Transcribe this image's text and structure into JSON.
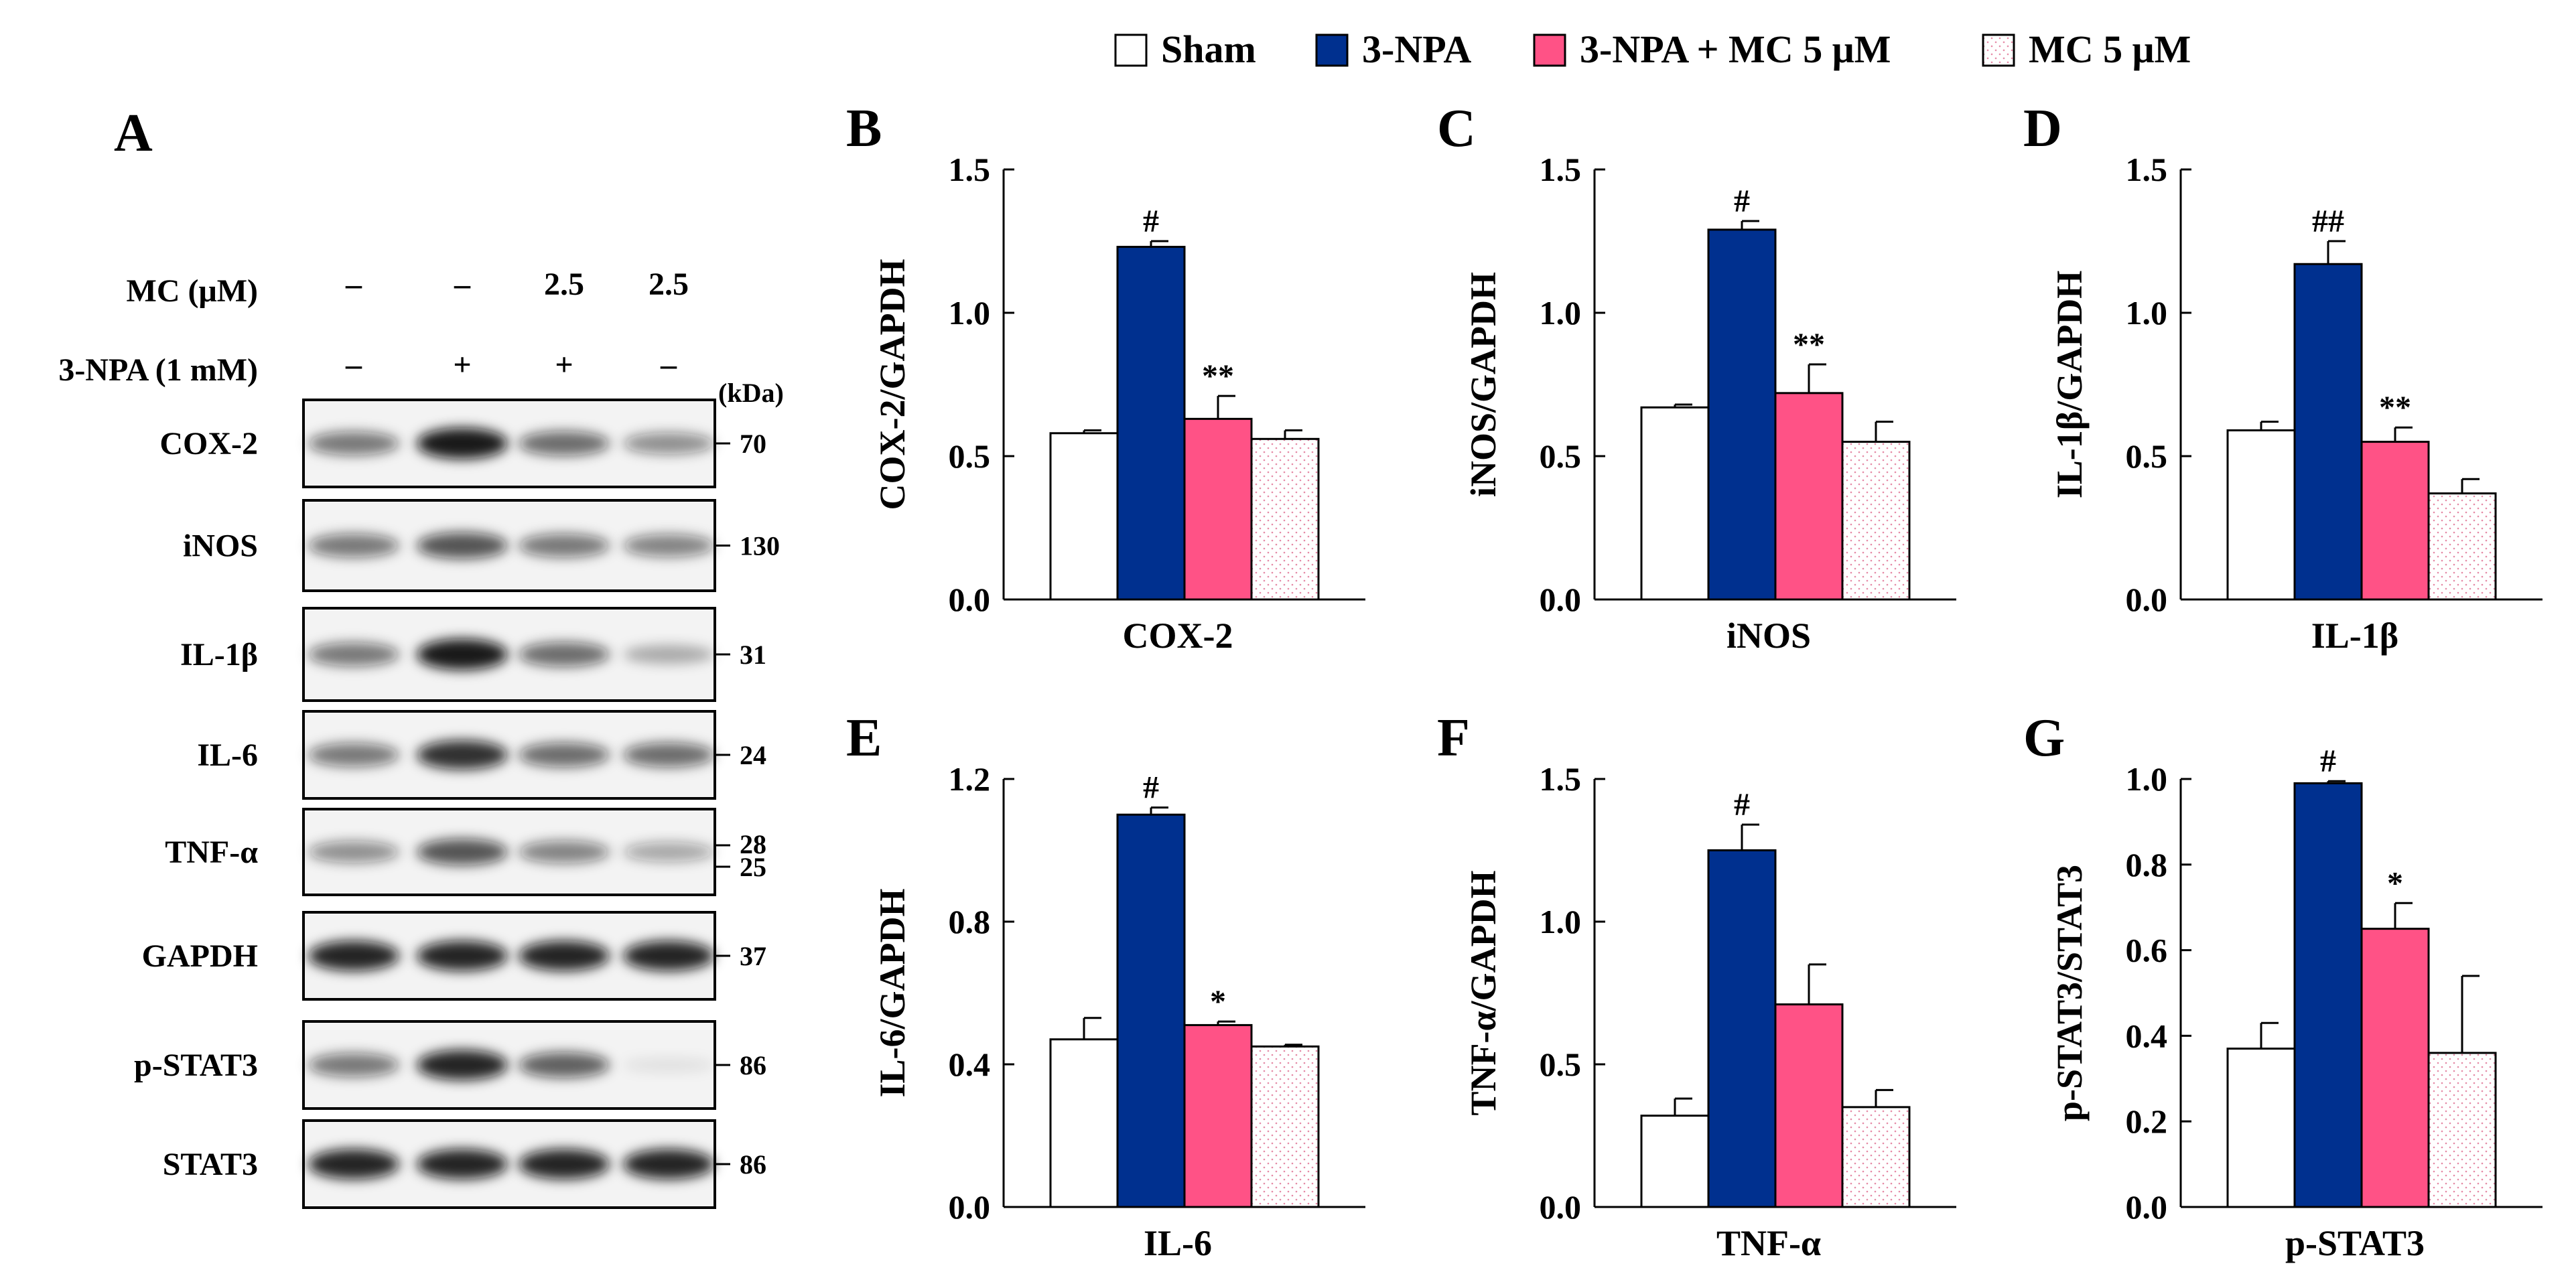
{
  "colors": {
    "sham": "#ffffff",
    "npa": "#00308f",
    "npa_mc": "#ff5286",
    "mc": "#ffffff",
    "mc_dots": "#e58aa6"
  },
  "legend": [
    {
      "key": "sham",
      "label": "Sham"
    },
    {
      "key": "npa",
      "label": "3-NPA"
    },
    {
      "key": "npa_mc",
      "label": "3-NPA + MC 5 μM"
    },
    {
      "key": "mc",
      "label": "MC 5 μM"
    }
  ],
  "blot": {
    "panel": "A",
    "mc_label": "MC (μM)",
    "mc_values": [
      "–",
      "–",
      "2.5",
      "2.5"
    ],
    "npa_label": "3-NPA (1 mM)",
    "npa_values": [
      "–",
      "+",
      "+",
      "–"
    ],
    "kda_unit": "(kDa)",
    "rows": [
      {
        "name": "COX-2",
        "kda": "70",
        "intensity": [
          0.55,
          0.95,
          0.6,
          0.45
        ]
      },
      {
        "name": "iNOS",
        "kda": "130",
        "intensity": [
          0.55,
          0.7,
          0.55,
          0.5
        ]
      },
      {
        "name": "IL-1β",
        "kda": "31",
        "intensity": [
          0.55,
          0.95,
          0.6,
          0.3
        ]
      },
      {
        "name": "IL-6",
        "kda": "24",
        "intensity": [
          0.55,
          0.85,
          0.6,
          0.6
        ]
      },
      {
        "name": "TNF-α",
        "kda": "28\n25",
        "kda_top": "28",
        "kda_bottom": "25",
        "intensity": [
          0.45,
          0.7,
          0.5,
          0.35
        ]
      },
      {
        "name": "GAPDH",
        "kda": "37",
        "intensity": [
          0.9,
          0.9,
          0.9,
          0.9
        ]
      },
      {
        "name": "p-STAT3",
        "kda": "86",
        "intensity": [
          0.55,
          0.9,
          0.65,
          0.08
        ]
      },
      {
        "name": "STAT3",
        "kda": "86",
        "intensity": [
          0.9,
          0.9,
          0.9,
          0.9
        ]
      }
    ]
  },
  "chart_data": [
    {
      "panel": "B",
      "type": "bar",
      "ylabel": "COX-2/GAPDH",
      "xlabel": "COX-2",
      "ylim": [
        0,
        1.5
      ],
      "yticks": [
        "0.0",
        "0.5",
        "1.0",
        "1.5"
      ],
      "values": [
        0.58,
        1.23,
        0.63,
        0.56
      ],
      "errors": [
        0.01,
        0.02,
        0.08,
        0.03
      ],
      "sig": [
        "",
        "#",
        "**",
        ""
      ]
    },
    {
      "panel": "C",
      "type": "bar",
      "ylabel": "iNOS/GAPDH",
      "xlabel": "iNOS",
      "ylim": [
        0,
        1.5
      ],
      "yticks": [
        "0.0",
        "0.5",
        "1.0",
        "1.5"
      ],
      "values": [
        0.67,
        1.29,
        0.72,
        0.55
      ],
      "errors": [
        0.01,
        0.03,
        0.1,
        0.07
      ],
      "sig": [
        "",
        "#",
        "**",
        ""
      ]
    },
    {
      "panel": "D",
      "type": "bar",
      "ylabel": "IL-1β/GAPDH",
      "xlabel": "IL-1β",
      "ylim": [
        0,
        1.5
      ],
      "yticks": [
        "0.0",
        "0.5",
        "1.0",
        "1.5"
      ],
      "values": [
        0.59,
        1.17,
        0.55,
        0.37
      ],
      "errors": [
        0.03,
        0.08,
        0.05,
        0.05
      ],
      "sig": [
        "",
        "##",
        "**",
        ""
      ]
    },
    {
      "panel": "E",
      "type": "bar",
      "ylabel": "IL-6/GAPDH",
      "xlabel": "IL-6",
      "ylim": [
        0,
        1.2
      ],
      "yticks": [
        "0.0",
        "0.4",
        "0.8",
        "1.2"
      ],
      "values": [
        0.47,
        1.1,
        0.51,
        0.45
      ],
      "errors": [
        0.06,
        0.02,
        0.01,
        0.005
      ],
      "sig": [
        "",
        "#",
        "*",
        ""
      ]
    },
    {
      "panel": "F",
      "type": "bar",
      "ylabel": "TNF-α/GAPDH",
      "xlabel": "TNF-α",
      "ylim": [
        0,
        1.5
      ],
      "yticks": [
        "0.0",
        "0.5",
        "1.0",
        "1.5"
      ],
      "values": [
        0.32,
        1.25,
        0.71,
        0.35
      ],
      "errors": [
        0.06,
        0.09,
        0.14,
        0.06
      ],
      "sig": [
        "",
        "#",
        "",
        ""
      ]
    },
    {
      "panel": "G",
      "type": "bar",
      "ylabel": "p-STAT3/STAT3",
      "xlabel": "p-STAT3",
      "ylim": [
        0,
        1.0
      ],
      "yticks": [
        "0.0",
        "0.2",
        "0.4",
        "0.6",
        "0.8",
        "1.0"
      ],
      "values": [
        0.37,
        0.99,
        0.65,
        0.36
      ],
      "errors": [
        0.06,
        0.005,
        0.06,
        0.18
      ],
      "sig": [
        "",
        "#",
        "*",
        ""
      ]
    }
  ]
}
